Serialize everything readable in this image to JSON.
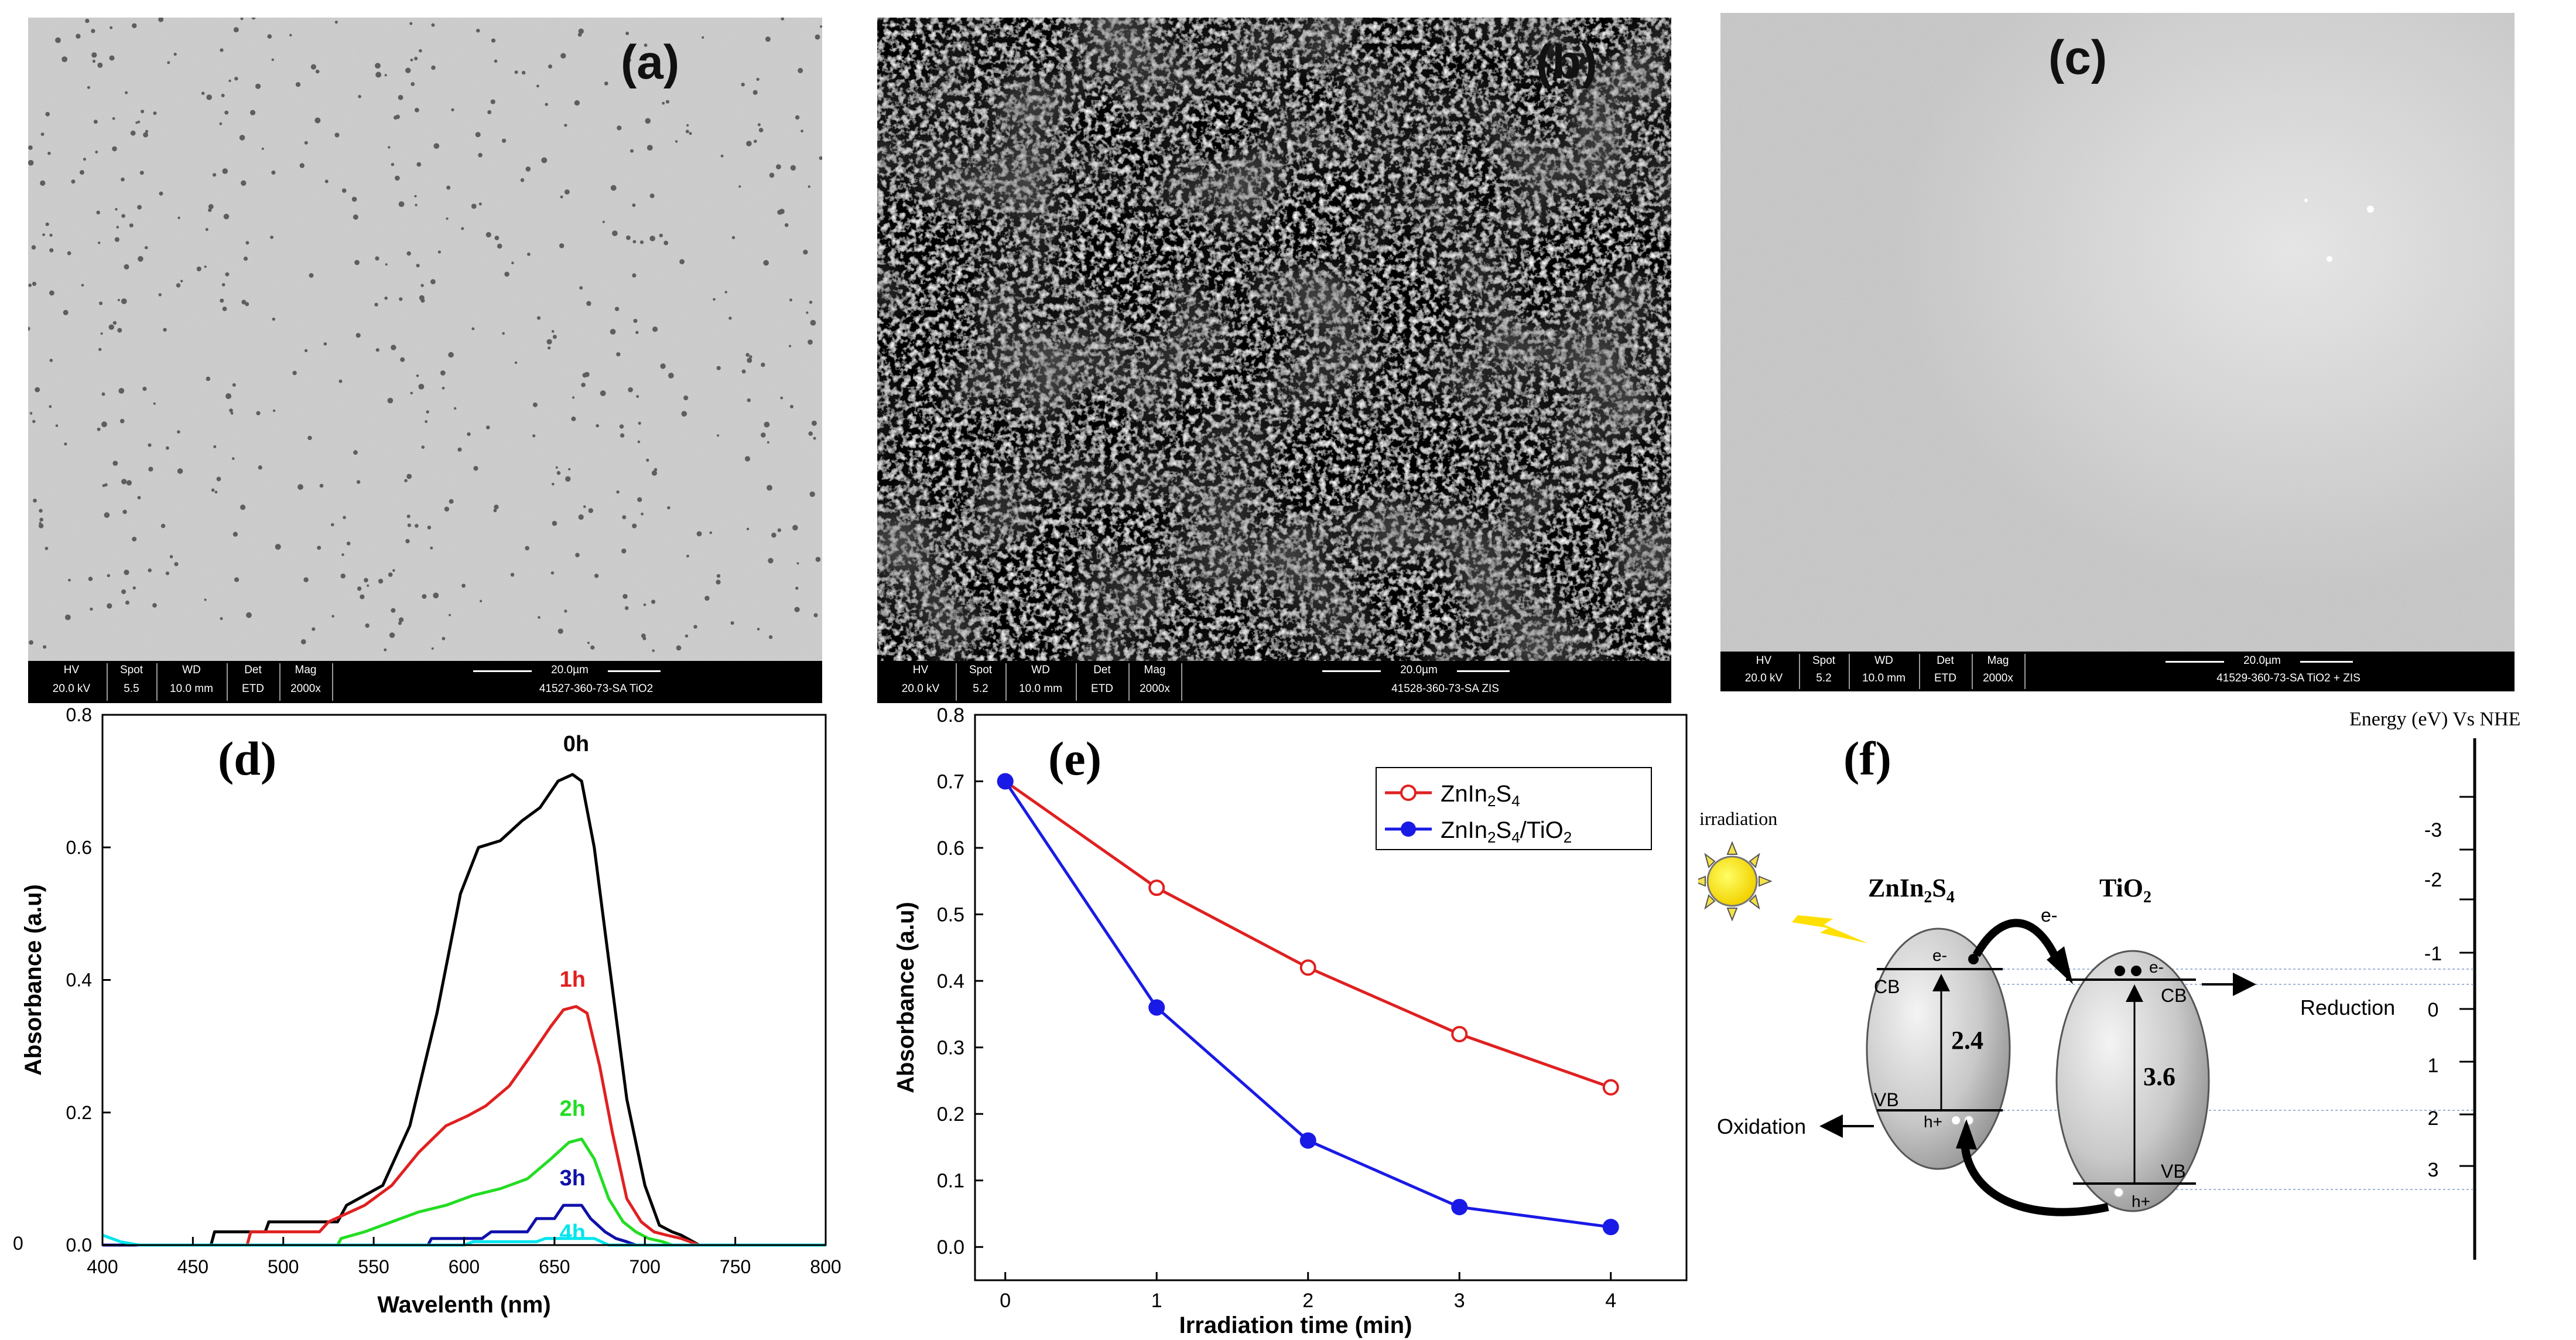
{
  "panels": {
    "a": {
      "label": "(a)"
    },
    "b": {
      "label": "(b)"
    },
    "c": {
      "label": "(c)"
    },
    "d": {
      "label": "(d)"
    },
    "e": {
      "label": "(e)"
    },
    "f": {
      "label": "(f)"
    }
  },
  "sem": {
    "headers": [
      "HV",
      "Spot",
      "WD",
      "Det",
      "Mag"
    ],
    "scale": "20.0µm",
    "a": {
      "values": [
        "20.0 kV",
        "5.5",
        "10.0 mm",
        "ETD",
        "2000x"
      ],
      "id": "41527-360-73-SA  TiO2"
    },
    "b": {
      "values": [
        "20.0 kV",
        "5.2",
        "10.0 mm",
        "ETD",
        "2000x"
      ],
      "id": "41528-360-73-SA  ZIS"
    },
    "c": {
      "values": [
        "20.0 kV",
        "5.2",
        "10.0 mm",
        "ETD",
        "2000x"
      ],
      "id": "41529-360-73-SA  TiO2 + ZIS"
    }
  },
  "chart_data": [
    {
      "type": "line",
      "panel": "d",
      "xlabel": "Wavelenth (nm)",
      "ylabel": "Absorbance (a.u)",
      "xlim": [
        400,
        800
      ],
      "ylim": [
        0,
        0.8
      ],
      "xticks": [
        400,
        450,
        500,
        550,
        600,
        650,
        700,
        750,
        800
      ],
      "yticks": [
        0.0,
        0.2,
        0.4,
        0.6,
        0.8
      ],
      "series": [
        {
          "name": "0h",
          "color": "#000000",
          "x": [
            400,
            460,
            462,
            490,
            492,
            530,
            535,
            555,
            570,
            585,
            598,
            608,
            620,
            632,
            642,
            652,
            660,
            665,
            672,
            680,
            690,
            700,
            708,
            715,
            720,
            730,
            800
          ],
          "y": [
            0.0,
            0.0,
            0.02,
            0.02,
            0.035,
            0.035,
            0.06,
            0.09,
            0.18,
            0.35,
            0.53,
            0.6,
            0.61,
            0.64,
            0.66,
            0.7,
            0.71,
            0.7,
            0.6,
            0.43,
            0.22,
            0.09,
            0.03,
            0.02,
            0.015,
            0.0,
            0.0
          ]
        },
        {
          "name": "1h",
          "color": "#e02020",
          "x": [
            400,
            480,
            482,
            520,
            525,
            545,
            560,
            575,
            590,
            602,
            612,
            625,
            638,
            648,
            655,
            662,
            668,
            675,
            682,
            690,
            698,
            705,
            712,
            720,
            730,
            800
          ],
          "y": [
            0.0,
            0.0,
            0.02,
            0.02,
            0.035,
            0.06,
            0.09,
            0.14,
            0.18,
            0.195,
            0.21,
            0.24,
            0.29,
            0.33,
            0.355,
            0.36,
            0.35,
            0.27,
            0.17,
            0.07,
            0.035,
            0.02,
            0.015,
            0.01,
            0.0,
            0.0
          ]
        },
        {
          "name": "2h",
          "color": "#22dd22",
          "x": [
            400,
            530,
            532,
            545,
            560,
            575,
            590,
            605,
            620,
            635,
            648,
            658,
            665,
            672,
            680,
            688,
            695,
            702,
            710,
            715,
            800
          ],
          "y": [
            0.0,
            0.0,
            0.01,
            0.02,
            0.035,
            0.05,
            0.06,
            0.075,
            0.085,
            0.1,
            0.13,
            0.155,
            0.16,
            0.13,
            0.07,
            0.035,
            0.02,
            0.01,
            0.005,
            0.0,
            0.0
          ]
        },
        {
          "name": "3h",
          "color": "#1010aa",
          "x": [
            400,
            580,
            582,
            610,
            615,
            635,
            640,
            650,
            655,
            665,
            670,
            678,
            684,
            690,
            695,
            800
          ],
          "y": [
            0.0,
            0.0,
            0.01,
            0.01,
            0.02,
            0.02,
            0.04,
            0.04,
            0.06,
            0.06,
            0.04,
            0.02,
            0.01,
            0.005,
            0.0,
            0.0
          ]
        },
        {
          "name": "4h",
          "color": "#00e5ee",
          "x": [
            400,
            410,
            420,
            600,
            605,
            640,
            645,
            672,
            680,
            800
          ],
          "y": [
            0.015,
            0.005,
            0.0,
            0.0,
            0.005,
            0.005,
            0.01,
            0.01,
            0.0,
            0.0
          ]
        }
      ]
    },
    {
      "type": "line",
      "panel": "e",
      "xlabel": "Irradiation time (min)",
      "ylabel": "Absorbance (a.u)",
      "xlim": [
        -0.2,
        4.5
      ],
      "ylim": [
        -0.05,
        0.8
      ],
      "xticks": [
        0,
        1,
        2,
        3,
        4
      ],
      "yticks": [
        0.0,
        0.1,
        0.2,
        0.3,
        0.4,
        0.5,
        0.6,
        0.7,
        0.8
      ],
      "legend_location": "top-right",
      "series": [
        {
          "name": "ZnIn2S4",
          "color": "#e02020",
          "marker": "open-circle",
          "x": [
            0,
            1,
            2,
            3,
            4
          ],
          "y": [
            0.7,
            0.54,
            0.42,
            0.32,
            0.24
          ]
        },
        {
          "name": "ZnIn2S4/TiO2",
          "color": "#1a1ae6",
          "marker": "filled-circle",
          "x": [
            0,
            1,
            2,
            3,
            4
          ],
          "y": [
            0.7,
            0.36,
            0.16,
            0.06,
            0.03
          ]
        }
      ]
    }
  ],
  "diagram": {
    "axis_title": "Energy (eV) Vs NHE",
    "axis_ticks": [
      "-3",
      "-2",
      "-1",
      "0",
      "1",
      "2",
      "3"
    ],
    "irradiation": "irradiation",
    "zis_title": "ZnIn2S4",
    "tio2_title": "TiO2",
    "zis_gap": "2.4",
    "tio2_gap": "3.6",
    "cb": "CB",
    "vb": "VB",
    "electron": "e-",
    "hole": "h+",
    "reduction": "Reduction",
    "oxidation": "Oxidation"
  }
}
